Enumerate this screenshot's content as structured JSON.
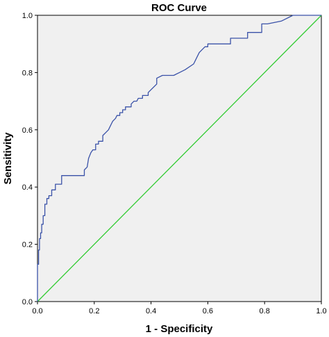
{
  "chart_data": {
    "type": "line",
    "title": "ROC Curve",
    "xlabel": "1 - Specificity",
    "ylabel": "Sensitivity",
    "xlim": [
      0,
      1
    ],
    "ylim": [
      0,
      1
    ],
    "x_ticks": [
      "0.0",
      "0.2",
      "0.4",
      "0.6",
      "0.8",
      "1.0"
    ],
    "y_ticks": [
      "0.0",
      "0.2",
      "0.4",
      "0.6",
      "0.8",
      "1.0"
    ],
    "grid": false,
    "legend": "none",
    "background_color": "#f0f0f0",
    "series": [
      {
        "role": "roc-curve",
        "color": "#3a52a8",
        "x": [
          0,
          0,
          0.004,
          0.004,
          0.007,
          0.007,
          0.011,
          0.011,
          0.015,
          0.015,
          0.02,
          0.02,
          0.026,
          0.026,
          0.033,
          0.033,
          0.04,
          0.04,
          0.05,
          0.05,
          0.063,
          0.063,
          0.085,
          0.085,
          0.165,
          0.165,
          0.175,
          0.18,
          0.188,
          0.195,
          0.205,
          0.205,
          0.215,
          0.215,
          0.23,
          0.23,
          0.24,
          0.25,
          0.255,
          0.26,
          0.265,
          0.27,
          0.275,
          0.28,
          0.29,
          0.29,
          0.3,
          0.3,
          0.31,
          0.31,
          0.33,
          0.33,
          0.34,
          0.35,
          0.355,
          0.37,
          0.37,
          0.39,
          0.39,
          0.4,
          0.42,
          0.42,
          0.44,
          0.46,
          0.48,
          0.5,
          0.52,
          0.55,
          0.56,
          0.57,
          0.58,
          0.59,
          0.6,
          0.6,
          0.62,
          0.68,
          0.68,
          0.74,
          0.74,
          0.79,
          0.79,
          0.81,
          0.86,
          0.9,
          1.0
        ],
        "y": [
          0,
          0.13,
          0.13,
          0.18,
          0.18,
          0.22,
          0.22,
          0.24,
          0.24,
          0.27,
          0.27,
          0.3,
          0.3,
          0.34,
          0.34,
          0.36,
          0.36,
          0.37,
          0.37,
          0.39,
          0.39,
          0.41,
          0.41,
          0.44,
          0.44,
          0.46,
          0.47,
          0.5,
          0.52,
          0.53,
          0.53,
          0.55,
          0.55,
          0.56,
          0.56,
          0.58,
          0.59,
          0.6,
          0.61,
          0.62,
          0.63,
          0.635,
          0.64,
          0.65,
          0.65,
          0.66,
          0.66,
          0.67,
          0.67,
          0.68,
          0.68,
          0.69,
          0.7,
          0.7,
          0.71,
          0.71,
          0.72,
          0.72,
          0.73,
          0.74,
          0.76,
          0.78,
          0.79,
          0.79,
          0.79,
          0.8,
          0.81,
          0.83,
          0.85,
          0.87,
          0.88,
          0.89,
          0.89,
          0.9,
          0.9,
          0.9,
          0.92,
          0.92,
          0.94,
          0.94,
          0.97,
          0.97,
          0.98,
          1.0,
          1.0
        ]
      },
      {
        "role": "reference-line",
        "color": "#33cc33",
        "x": [
          0,
          1
        ],
        "y": [
          0,
          1
        ]
      }
    ]
  }
}
